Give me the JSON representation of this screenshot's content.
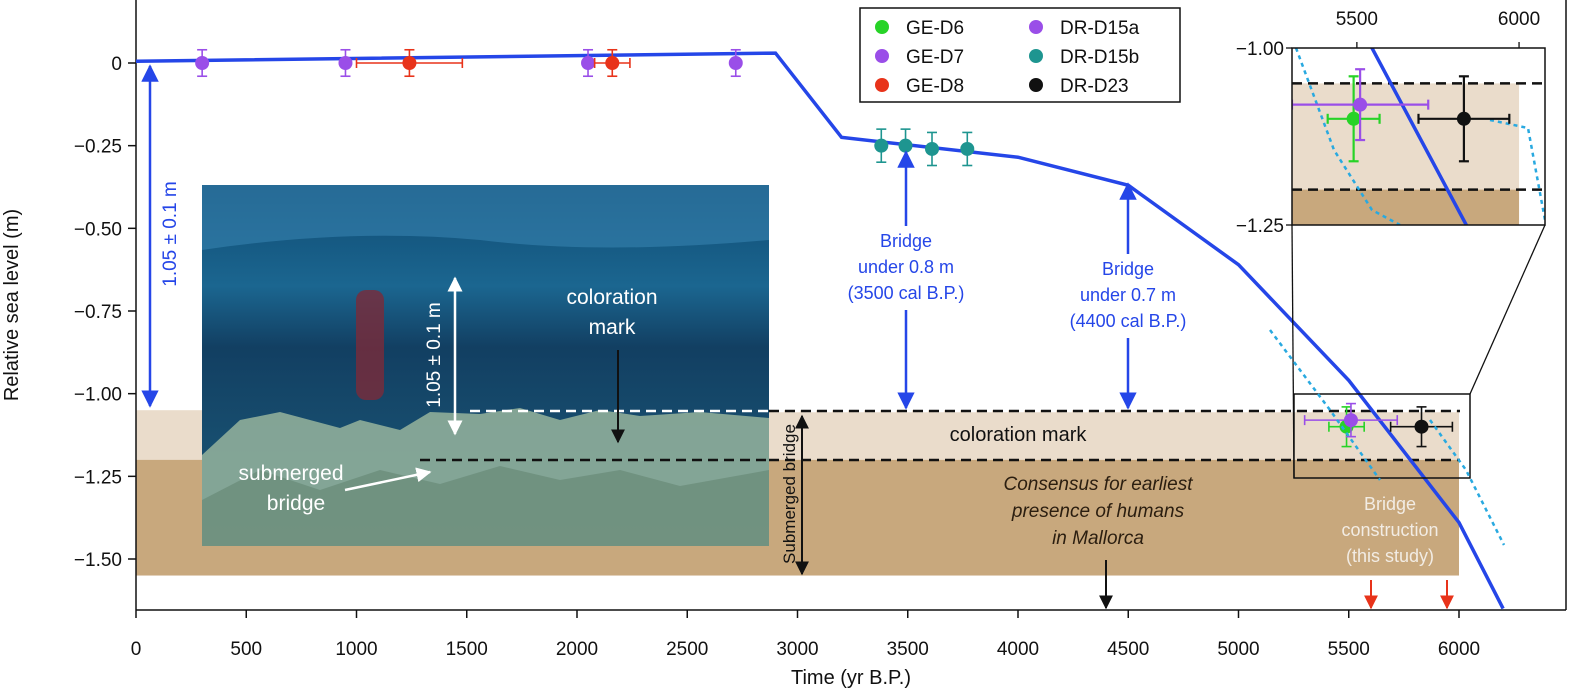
{
  "chart_data": {
    "type": "scatter",
    "xlabel": "Time (yr B.P.)",
    "ylabel": "Relative sea level (m)",
    "xlim": [
      0,
      6400
    ],
    "ylim": [
      -1.65,
      0.18
    ],
    "x_ticks": [
      0,
      500,
      1000,
      1500,
      2000,
      2500,
      3000,
      3500,
      4000,
      4500,
      5000,
      5500,
      6000
    ],
    "y_ticks": [
      0,
      -0.25,
      -0.5,
      -0.75,
      -1.0,
      -1.25,
      -1.5
    ],
    "x_tick_labels": [
      "0",
      "500",
      "1000",
      "1500",
      "2000",
      "2500",
      "3000",
      "3500",
      "4000",
      "4500",
      "5000",
      "5500",
      "6000"
    ],
    "y_tick_labels": [
      "0",
      "−0.25",
      "−0.50",
      "−0.75",
      "−1.00",
      "−1.25",
      "−1.50"
    ],
    "bands": [
      {
        "name": "coloration-mark",
        "y": [
          -1.2,
          -1.05
        ],
        "x": [
          0,
          6000
        ],
        "color": "#eadccb"
      },
      {
        "name": "submerged-bridge",
        "y": [
          -1.55,
          -1.2
        ],
        "x": [
          0,
          6000
        ],
        "color": "#c8a87d"
      }
    ],
    "sea_level_curve": {
      "color": "#2546e8",
      "x": [
        0,
        2900,
        3200,
        4000,
        4500,
        5000,
        5500,
        6000,
        6200
      ],
      "y": [
        0.005,
        0.03,
        -0.225,
        -0.285,
        -0.37,
        -0.61,
        -0.96,
        -1.39,
        -1.65
      ]
    },
    "series": [
      {
        "name": "GE-D6",
        "color": "#27d327",
        "points": [
          {
            "x": 5490,
            "y": -1.1,
            "xerr": 80,
            "yerr": 0.06
          }
        ]
      },
      {
        "name": "GE-D7",
        "color": "#9a4ee8",
        "points": [
          {
            "x": 300,
            "y": 0.0,
            "xerr": 0,
            "yerr": 0.04
          },
          {
            "x": 950,
            "y": 0.0,
            "xerr": 0,
            "yerr": 0.04
          },
          {
            "x": 2050,
            "y": 0.0,
            "xerr": 0,
            "yerr": 0.04
          },
          {
            "x": 2720,
            "y": 0.0,
            "xerr": 0,
            "yerr": 0.04
          }
        ]
      },
      {
        "name": "GE-D8",
        "color": "#e8331a",
        "points": [
          {
            "x": 1240,
            "y": 0.0,
            "xerr": 240,
            "yerr": 0.04
          },
          {
            "x": 2160,
            "y": 0.0,
            "xerr": 80,
            "yerr": 0.04
          }
        ]
      },
      {
        "name": "DR-D15a",
        "color": "#9a4ee8",
        "points": [
          {
            "x": 5510,
            "y": -1.08,
            "xerr": 210,
            "yerr": 0.05
          }
        ]
      },
      {
        "name": "DR-D15b",
        "color": "#1e9590",
        "points": [
          {
            "x": 3380,
            "y": -0.25,
            "xerr": 0,
            "yerr": 0.05
          },
          {
            "x": 3490,
            "y": -0.25,
            "xerr": 0,
            "yerr": 0.05
          },
          {
            "x": 3610,
            "y": -0.26,
            "xerr": 0,
            "yerr": 0.05
          },
          {
            "x": 3770,
            "y": -0.26,
            "xerr": 0,
            "yerr": 0.05
          }
        ]
      },
      {
        "name": "DR-D23",
        "color": "#111111",
        "points": [
          {
            "x": 5830,
            "y": -1.1,
            "xerr": 140,
            "yerr": 0.06
          }
        ]
      }
    ],
    "legend": {
      "position": "top",
      "entries": [
        "GE-D6",
        "GE-D7",
        "GE-D8",
        "DR-D15a",
        "DR-D15b",
        "DR-D23"
      ]
    },
    "inset": {
      "xlim": [
        5300,
        6080
      ],
      "ylim": [
        -1.25,
        -1.0
      ],
      "x_ticks": [
        5500,
        6000
      ],
      "y_ticks": [
        -1.0,
        -1.25
      ],
      "x_tick_labels": [
        "5500",
        "6000"
      ],
      "y_tick_labels": [
        "−1.00",
        "−1.25"
      ]
    },
    "annotations": {
      "left_arrow": "1.05 ± 0.1 m",
      "bridge_3500": [
        "Bridge",
        "under 0.8 m",
        "(3500 cal B.P.)"
      ],
      "bridge_4400": [
        "Bridge",
        "under 0.7 m",
        "(4400 cal B.P.)"
      ],
      "coloration_mark_band": "coloration mark",
      "submerged_bridge_band": "Submerged bridge",
      "humans": [
        "Consensus for earliest",
        "presence of humans",
        "in Mallorca"
      ],
      "construction": [
        "Bridge",
        "construction",
        "(this study)"
      ]
    },
    "photo_labels": {
      "depth": "1.05 ± 0.1 m",
      "coloration_mark": [
        "coloration",
        "mark"
      ],
      "submerged_bridge": [
        "submerged",
        "bridge"
      ]
    }
  }
}
